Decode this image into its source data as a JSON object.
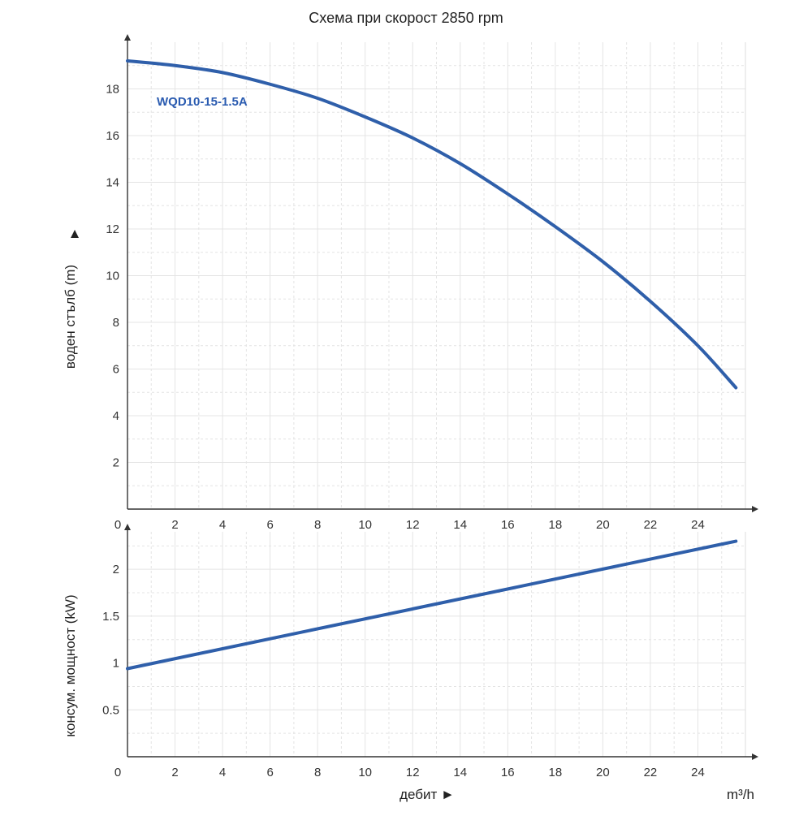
{
  "title": "Схема при скорост 2850 rpm",
  "x_unit": "m³/h",
  "x_caption": "дебит ►",
  "chart_data": [
    {
      "type": "line",
      "ylabel": "воден стълб (m)",
      "ylabel_arrow": "▲",
      "xlim": [
        0,
        26
      ],
      "ylim": [
        0,
        20
      ],
      "x_ticks": [
        0,
        2,
        4,
        6,
        8,
        10,
        12,
        14,
        16,
        18,
        20,
        22,
        24
      ],
      "y_ticks": [
        2,
        4,
        6,
        8,
        10,
        12,
        14,
        16,
        18
      ],
      "grid": true,
      "series": [
        {
          "name": "WQD10-15-1.5A",
          "color": "#2f5faa",
          "x": [
            0,
            2,
            4,
            6,
            8,
            10,
            12,
            14,
            16,
            18,
            20,
            22,
            24,
            25.6
          ],
          "y": [
            19.2,
            19.0,
            18.7,
            18.2,
            17.6,
            16.8,
            15.9,
            14.8,
            13.5,
            12.1,
            10.6,
            8.9,
            7.0,
            5.2
          ]
        }
      ]
    },
    {
      "type": "line",
      "ylabel": "консум. мощност (kW)",
      "xlim": [
        0,
        26
      ],
      "ylim": [
        0,
        2.4
      ],
      "x_ticks": [
        0,
        2,
        4,
        6,
        8,
        10,
        12,
        14,
        16,
        18,
        20,
        22,
        24
      ],
      "y_ticks": [
        0.5,
        1,
        1.5,
        2
      ],
      "y_tick_labels": [
        "0.5",
        "1",
        "1.5",
        "2"
      ],
      "grid": true,
      "series": [
        {
          "color": "#2f5faa",
          "x": [
            0,
            25.6
          ],
          "y": [
            0.94,
            2.3
          ]
        }
      ]
    }
  ]
}
